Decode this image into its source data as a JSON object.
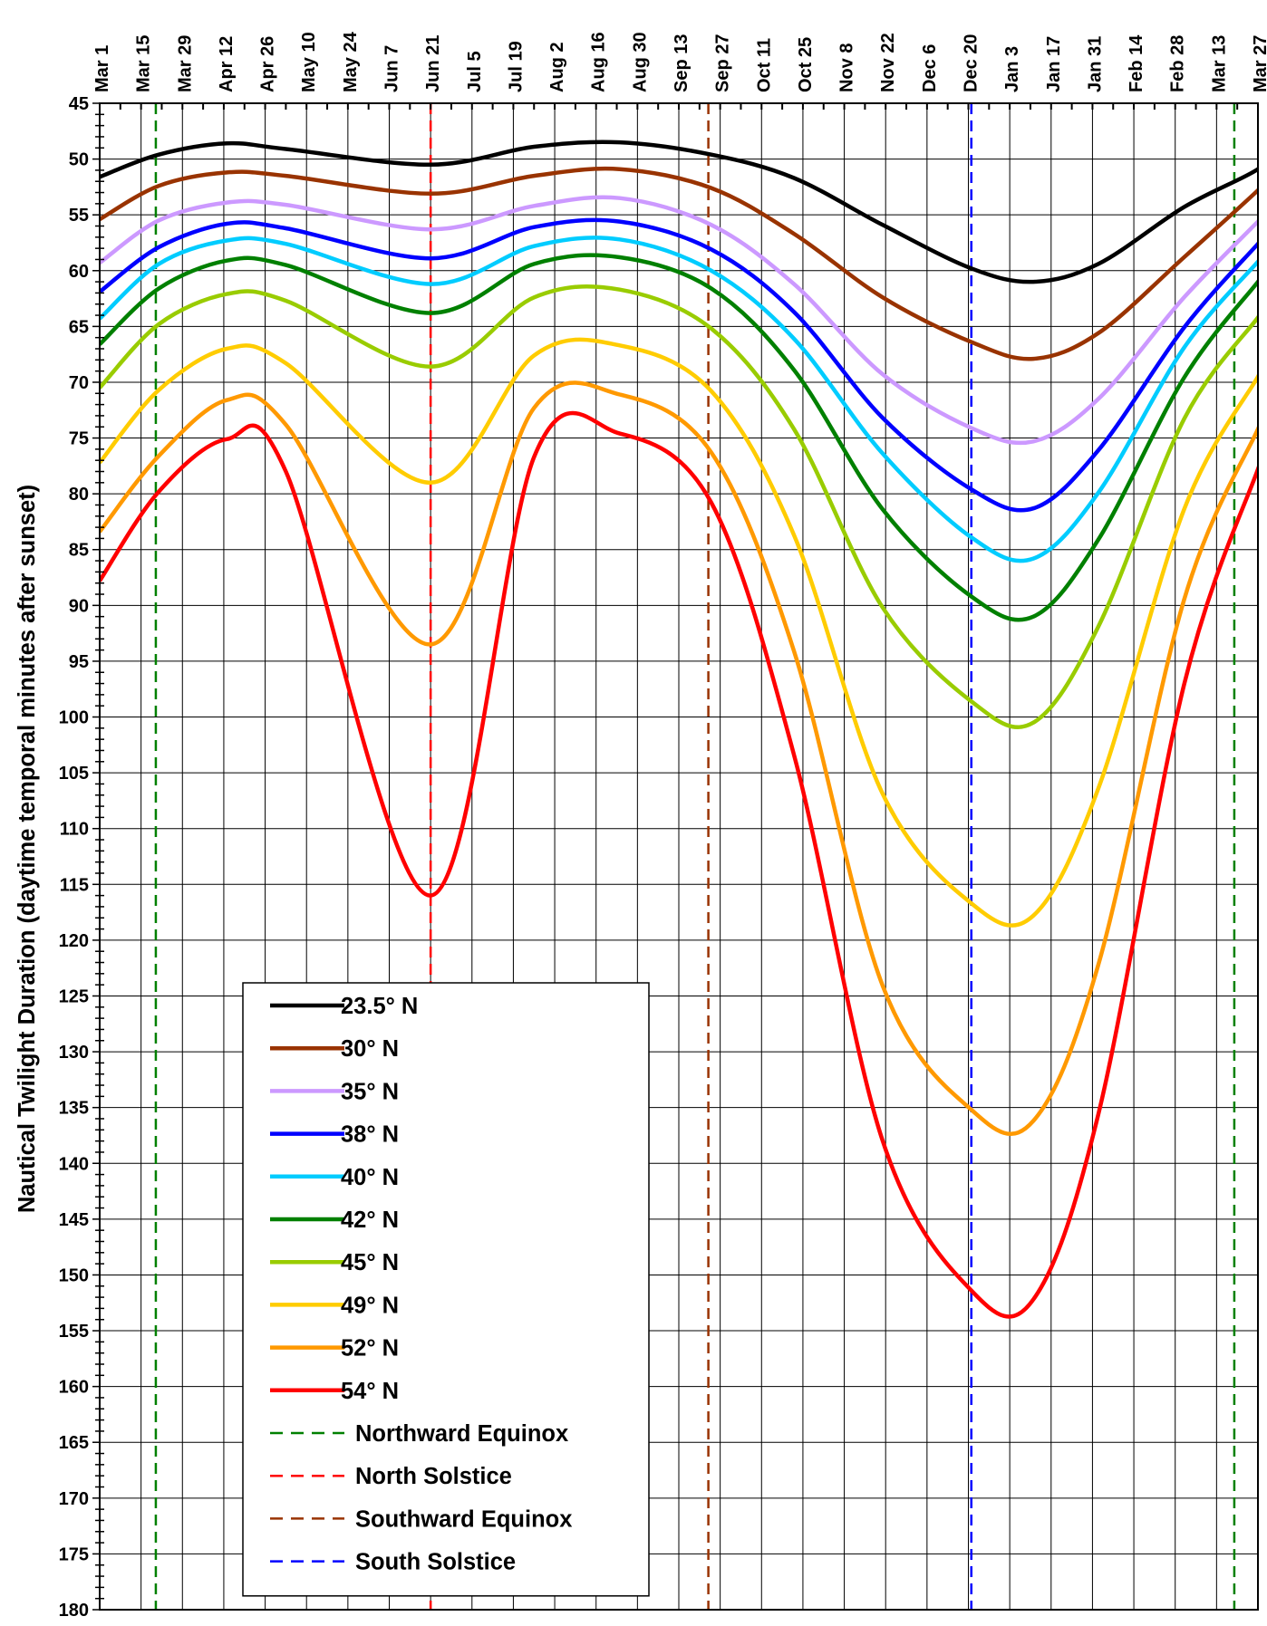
{
  "chart_data": {
    "type": "line",
    "title": "",
    "xlabel": "",
    "ylabel": "Nautical Twilight Duration (daytime temporal minutes after sunset)",
    "x_axis": {
      "position": "top",
      "tick_labels": [
        "Mar 1",
        "Mar 15",
        "Mar 29",
        "Apr 12",
        "Apr 26",
        "May 10",
        "May 24",
        "Jun 7",
        "Jun 21",
        "Jul 5",
        "Jul 19",
        "Aug 2",
        "Aug 16",
        "Aug 30",
        "Sep 13",
        "Sep 27",
        "Oct 11",
        "Oct 25",
        "Nov 8",
        "Nov 22",
        "Dec 6",
        "Dec 20",
        "Jan 3",
        "Jan 17",
        "Jan 31",
        "Feb 14",
        "Feb 28",
        "Mar 13",
        "Mar 27"
      ],
      "range_days": [
        0,
        392
      ],
      "tick_step_days": 14,
      "minor_tick_step_days": 7
    },
    "y_axis": {
      "inverted": true,
      "range": [
        45,
        180
      ],
      "tick_labels": [
        "45",
        "50",
        "55",
        "60",
        "65",
        "70",
        "75",
        "80",
        "85",
        "90",
        "95",
        "100",
        "105",
        "110",
        "115",
        "120",
        "125",
        "130",
        "135",
        "140",
        "145",
        "150",
        "155",
        "160",
        "165",
        "170",
        "175",
        "180"
      ]
    },
    "grid": true,
    "legend_position": "bottom-left",
    "series": [
      {
        "name": "23.5° N",
        "color": "#000000",
        "values": [
          [
            0,
            51.6
          ],
          [
            20,
            49.6
          ],
          [
            43,
            48.6
          ],
          [
            63,
            49.1
          ],
          [
            112,
            50.5
          ],
          [
            147,
            48.9
          ],
          [
            176,
            48.5
          ],
          [
            207,
            49.6
          ],
          [
            235,
            51.7
          ],
          [
            265,
            55.9
          ],
          [
            295,
            59.8
          ],
          [
            316,
            61.0
          ],
          [
            338,
            59.4
          ],
          [
            367,
            54.3
          ],
          [
            392,
            50.9
          ],
          [
            396,
            49.1
          ]
        ]
      },
      {
        "name": "30° N",
        "color": "#993300",
        "values": [
          [
            0,
            55.4
          ],
          [
            20,
            52.4
          ],
          [
            43,
            51.2
          ],
          [
            63,
            51.5
          ],
          [
            112,
            53.1
          ],
          [
            147,
            51.5
          ],
          [
            176,
            50.9
          ],
          [
            207,
            52.6
          ],
          [
            235,
            56.7
          ],
          [
            265,
            62.4
          ],
          [
            295,
            66.4
          ],
          [
            316,
            67.9
          ],
          [
            338,
            65.6
          ],
          [
            367,
            58.8
          ],
          [
            392,
            52.8
          ],
          [
            396,
            51.6
          ]
        ]
      },
      {
        "name": "35° N",
        "color": "#cc99ff",
        "values": [
          [
            0,
            59.3
          ],
          [
            20,
            55.5
          ],
          [
            43,
            53.9
          ],
          [
            63,
            54.1
          ],
          [
            112,
            56.3
          ],
          [
            147,
            54.2
          ],
          [
            176,
            53.5
          ],
          [
            207,
            55.9
          ],
          [
            235,
            61.2
          ],
          [
            265,
            69.3
          ],
          [
            295,
            74.1
          ],
          [
            316,
            75.3
          ],
          [
            338,
            71.5
          ],
          [
            367,
            62.4
          ],
          [
            392,
            55.6
          ],
          [
            396,
            54.5
          ]
        ]
      },
      {
        "name": "38° N",
        "color": "#0000ff",
        "values": [
          [
            0,
            61.9
          ],
          [
            20,
            57.9
          ],
          [
            43,
            55.8
          ],
          [
            63,
            56.2
          ],
          [
            112,
            58.9
          ],
          [
            147,
            56.1
          ],
          [
            176,
            55.6
          ],
          [
            207,
            58.1
          ],
          [
            235,
            63.7
          ],
          [
            265,
            73.2
          ],
          [
            295,
            79.6
          ],
          [
            316,
            81.3
          ],
          [
            338,
            76.1
          ],
          [
            367,
            65.1
          ],
          [
            392,
            57.6
          ],
          [
            396,
            56.5
          ]
        ]
      },
      {
        "name": "40° N",
        "color": "#00ccff",
        "values": [
          [
            0,
            64.3
          ],
          [
            20,
            59.4
          ],
          [
            43,
            57.3
          ],
          [
            63,
            57.6
          ],
          [
            112,
            61.2
          ],
          [
            147,
            57.8
          ],
          [
            176,
            57.2
          ],
          [
            207,
            60.0
          ],
          [
            235,
            66.1
          ],
          [
            265,
            76.4
          ],
          [
            295,
            83.9
          ],
          [
            316,
            85.8
          ],
          [
            338,
            79.9
          ],
          [
            367,
            66.9
          ],
          [
            392,
            59.2
          ],
          [
            396,
            58.0
          ]
        ]
      },
      {
        "name": "42° N",
        "color": "#008000",
        "values": [
          [
            0,
            66.6
          ],
          [
            20,
            61.6
          ],
          [
            43,
            59.1
          ],
          [
            63,
            59.5
          ],
          [
            112,
            63.8
          ],
          [
            147,
            59.4
          ],
          [
            176,
            58.8
          ],
          [
            207,
            61.6
          ],
          [
            235,
            68.9
          ],
          [
            265,
            81.4
          ],
          [
            295,
            89.2
          ],
          [
            316,
            91.0
          ],
          [
            338,
            84.1
          ],
          [
            367,
            69.6
          ],
          [
            392,
            61.0
          ],
          [
            396,
            59.8
          ]
        ]
      },
      {
        "name": "45° N",
        "color": "#99cc00",
        "values": [
          [
            0,
            70.5
          ],
          [
            20,
            64.8
          ],
          [
            43,
            62.1
          ],
          [
            63,
            62.7
          ],
          [
            112,
            68.6
          ],
          [
            147,
            62.4
          ],
          [
            176,
            61.7
          ],
          [
            207,
            65.2
          ],
          [
            235,
            74.2
          ],
          [
            265,
            90.2
          ],
          [
            295,
            98.6
          ],
          [
            316,
            100.5
          ],
          [
            338,
            91.9
          ],
          [
            367,
            73.3
          ],
          [
            392,
            64.2
          ],
          [
            396,
            62.8
          ]
        ]
      },
      {
        "name": "49° N",
        "color": "#ffcc00",
        "values": [
          [
            0,
            77.2
          ],
          [
            20,
            70.7
          ],
          [
            43,
            67.0
          ],
          [
            63,
            68.3
          ],
          [
            112,
            79.0
          ],
          [
            147,
            67.6
          ],
          [
            176,
            66.7
          ],
          [
            207,
            70.8
          ],
          [
            235,
            83.7
          ],
          [
            265,
            106.9
          ],
          [
            295,
            116.7
          ],
          [
            316,
            117.8
          ],
          [
            338,
            106.4
          ],
          [
            367,
            81.4
          ],
          [
            392,
            69.5
          ],
          [
            396,
            67.8
          ]
        ]
      },
      {
        "name": "52° N",
        "color": "#ff9900",
        "values": [
          [
            0,
            83.4
          ],
          [
            20,
            76.6
          ],
          [
            43,
            71.6
          ],
          [
            63,
            73.8
          ],
          [
            112,
            93.5
          ],
          [
            147,
            72.3
          ],
          [
            176,
            71.1
          ],
          [
            207,
            76.3
          ],
          [
            235,
            94.1
          ],
          [
            265,
            124.1
          ],
          [
            295,
            135.2
          ],
          [
            316,
            136.2
          ],
          [
            338,
            122.2
          ],
          [
            367,
            89.5
          ],
          [
            392,
            74.2
          ],
          [
            396,
            72.3
          ]
        ]
      },
      {
        "name": "54° N",
        "color": "#ff0000",
        "values": [
          [
            0,
            87.8
          ],
          [
            20,
            79.8
          ],
          [
            43,
            75.1
          ],
          [
            63,
            78.0
          ],
          [
            112,
            116.0
          ],
          [
            147,
            76.7
          ],
          [
            176,
            74.6
          ],
          [
            207,
            80.8
          ],
          [
            235,
            103.4
          ],
          [
            265,
            138.0
          ],
          [
            295,
            151.4
          ],
          [
            316,
            152.2
          ],
          [
            338,
            135.6
          ],
          [
            367,
            97.1
          ],
          [
            392,
            77.8
          ],
          [
            396,
            75.8
          ]
        ]
      },
      {
        "name": "Northward Equinox",
        "color": "#008000",
        "dashed": true,
        "x": 19
      },
      {
        "name": "North Solstice",
        "color": "#ff0000",
        "dashed": true,
        "x": 112
      },
      {
        "name": "Southward Equinox",
        "color": "#993300",
        "dashed": true,
        "x": 206
      },
      {
        "name": "South Solstice",
        "color": "#0000ff",
        "dashed": true,
        "x": 295
      },
      {
        "name": "",
        "color": "#008000",
        "dashed": true,
        "x": 384
      }
    ]
  }
}
